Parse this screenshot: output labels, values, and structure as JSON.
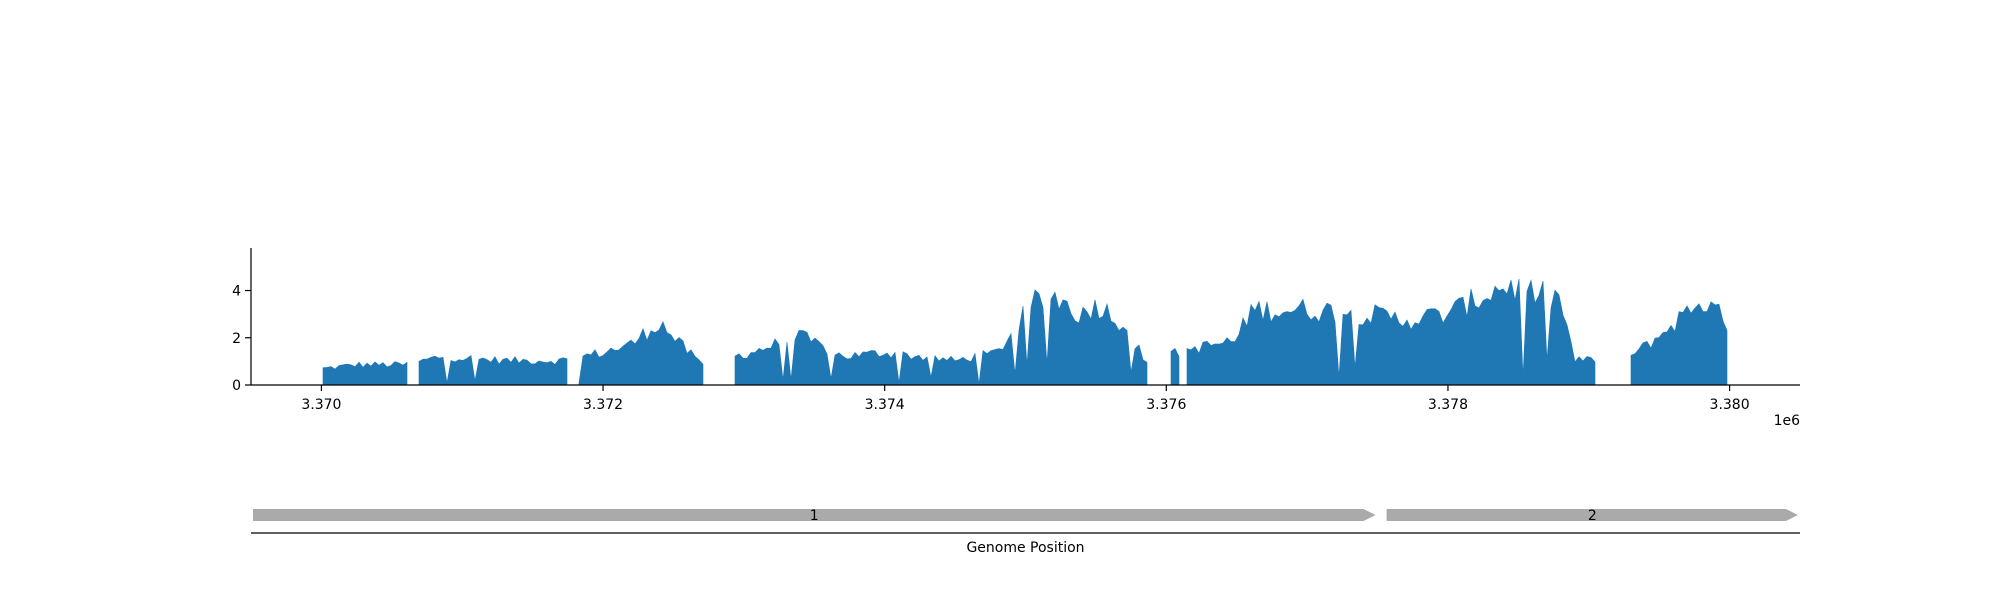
{
  "chart_data": {
    "type": "area",
    "title": "",
    "xlabel": "Genome Position",
    "ylabel": "",
    "x_offset_label": "1e6",
    "xlim": [
      3369500,
      3380500
    ],
    "ylim": [
      0,
      5.8
    ],
    "x_ticks": [
      3370000,
      3372000,
      3374000,
      3376000,
      3378000,
      3380000
    ],
    "x_tick_labels": [
      "3.370",
      "3.372",
      "3.374",
      "3.376",
      "3.378",
      "3.380"
    ],
    "y_ticks": [
      0,
      2,
      4
    ],
    "y_tick_labels": [
      "0",
      "2",
      "4"
    ],
    "color": "#1f77b4",
    "grid": false,
    "coverage_profile": [
      [
        3370000,
        0.8
      ],
      [
        3370250,
        1.0
      ],
      [
        3370600,
        1.0
      ],
      [
        3370850,
        1.4
      ],
      [
        3371300,
        1.2
      ],
      [
        3371700,
        1.2
      ],
      [
        3372000,
        1.6
      ],
      [
        3372200,
        2.0
      ],
      [
        3372400,
        3.1
      ],
      [
        3372550,
        2.0
      ],
      [
        3372700,
        1.0
      ],
      [
        3373050,
        1.6
      ],
      [
        3373400,
        2.4
      ],
      [
        3373700,
        1.4
      ],
      [
        3374000,
        1.6
      ],
      [
        3374500,
        1.2
      ],
      [
        3374800,
        1.6
      ],
      [
        3375050,
        4.0
      ],
      [
        3375200,
        4.4
      ],
      [
        3375400,
        3.4
      ],
      [
        3375500,
        4.0
      ],
      [
        3375700,
        3.0
      ],
      [
        3375850,
        1.2
      ],
      [
        3376200,
        1.8
      ],
      [
        3376500,
        2.2
      ],
      [
        3376600,
        3.7
      ],
      [
        3377000,
        3.7
      ],
      [
        3377300,
        3.6
      ],
      [
        3377700,
        3.2
      ],
      [
        3378000,
        3.5
      ],
      [
        3378400,
        4.9
      ],
      [
        3378800,
        4.2
      ],
      [
        3378900,
        1.2
      ],
      [
        3379300,
        1.4
      ],
      [
        3379500,
        2.4
      ],
      [
        3379800,
        4.2
      ],
      [
        3380000,
        3.0
      ]
    ],
    "coverage_gaps": [
      [
        3369500,
        3370000
      ],
      [
        3370620,
        3370680
      ],
      [
        3371750,
        3371820
      ],
      [
        3372720,
        3372930
      ],
      [
        3375890,
        3376020
      ],
      [
        3376100,
        3376140
      ],
      [
        3379050,
        3379290
      ],
      [
        3380000,
        3380500
      ]
    ],
    "genes": [
      {
        "label": "1",
        "start": 3369500,
        "end": 3377500,
        "color": "#aaaaaa",
        "strand": "+"
      },
      {
        "label": "2",
        "start": 3377550,
        "end": 3380500,
        "color": "#aaaaaa",
        "strand": "+"
      }
    ]
  }
}
